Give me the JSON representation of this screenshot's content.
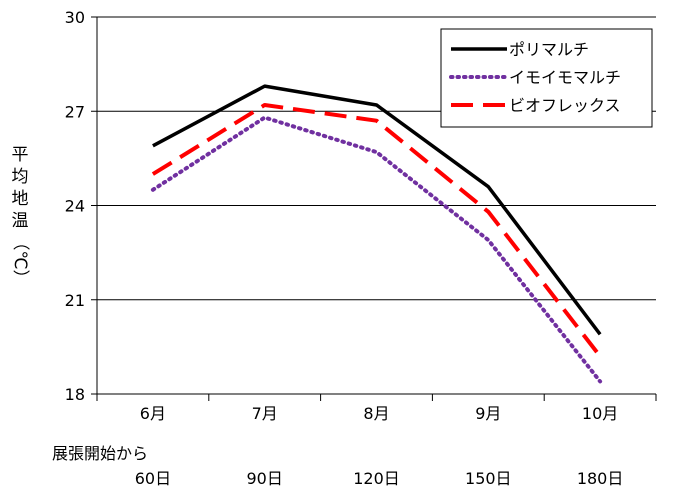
{
  "chart_data": {
    "type": "line",
    "title": "",
    "ylabel_chars": [
      "平",
      "均",
      "地",
      "温",
      "（℃）"
    ],
    "ylim": [
      18,
      30
    ],
    "y_ticks": [
      "18",
      "21",
      "24",
      "27",
      "30"
    ],
    "categories": [
      "6月",
      "7月",
      "8月",
      "9月",
      "10月"
    ],
    "x_sub_title": "展張開始から",
    "x_sub_labels": [
      "60日",
      "90日",
      "120日",
      "150日",
      "180日"
    ],
    "grid": "horizontal",
    "legend_position": "top-right",
    "series": [
      {
        "name": "ポリマルチ",
        "values": [
          25.9,
          27.8,
          27.2,
          24.6,
          19.9
        ],
        "color": "#000000",
        "style": "solid"
      },
      {
        "name": "イモイモマルチ",
        "values": [
          24.5,
          26.8,
          25.7,
          22.9,
          18.4
        ],
        "color": "#7030A0",
        "style": "dotted"
      },
      {
        "name": "ビオフレックス",
        "values": [
          25.0,
          27.2,
          26.7,
          23.8,
          19.2
        ],
        "color": "#FF0000",
        "style": "dashed"
      }
    ]
  }
}
